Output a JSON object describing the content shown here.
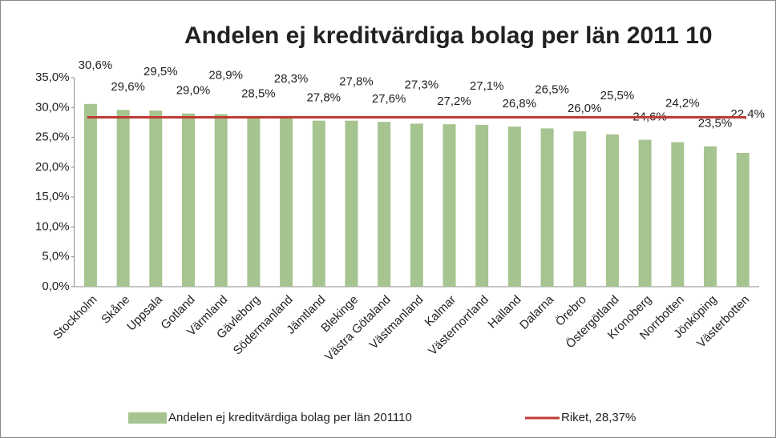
{
  "chart_data": {
    "type": "bar",
    "title": "Andelen ej kreditvärdiga bolag per län 2011 10",
    "categories": [
      "Stockholm",
      "Skåne",
      "Uppsala",
      "Gotland",
      "Värmland",
      "Gävleborg",
      "Södermanland",
      "Jämtland",
      "Blekinge",
      "Västra Götaland",
      "Västmanland",
      "Kalmar",
      "Västernorrland",
      "Halland",
      "Dalarna",
      "Örebro",
      "Östergötland",
      "Kronoberg",
      "Norrbotten",
      "Jönköping",
      "Västerbotten"
    ],
    "series": [
      {
        "name": "Andelen ej kreditvärdiga bolag per län 201110",
        "color": "#a6c48f",
        "values": [
          30.6,
          29.6,
          29.5,
          29.0,
          28.9,
          28.5,
          28.3,
          27.8,
          27.8,
          27.6,
          27.3,
          27.2,
          27.1,
          26.8,
          26.5,
          26.0,
          25.5,
          24.6,
          24.2,
          23.5,
          22.4
        ],
        "value_labels": [
          "30,6%",
          "29,6%",
          "29,5%",
          "29,0%",
          "28,9%",
          "28,5%",
          "28,3%",
          "27,8%",
          "27,8%",
          "27,6%",
          "27,3%",
          "27,2%",
          "27,1%",
          "26,8%",
          "26,5%",
          "26,0%",
          "25,5%",
          "24,6%",
          "24,2%",
          "23,5%",
          "22,4%"
        ]
      }
    ],
    "reference_line": {
      "name": "Riket, 28,37%",
      "value": 28.37,
      "color": "#be3a34"
    },
    "ylim": [
      0,
      35
    ],
    "yticks": [
      {
        "value": 0,
        "label": "0,0%"
      },
      {
        "value": 5,
        "label": "5,0%"
      },
      {
        "value": 10,
        "label": "10,0%"
      },
      {
        "value": 15,
        "label": "15,0%"
      },
      {
        "value": 20,
        "label": "20,0%"
      },
      {
        "value": 25,
        "label": "25,0%"
      },
      {
        "value": 30,
        "label": "30,0%"
      },
      {
        "value": 35,
        "label": "35,0%"
      }
    ],
    "grid": false,
    "legend": "bottom"
  }
}
